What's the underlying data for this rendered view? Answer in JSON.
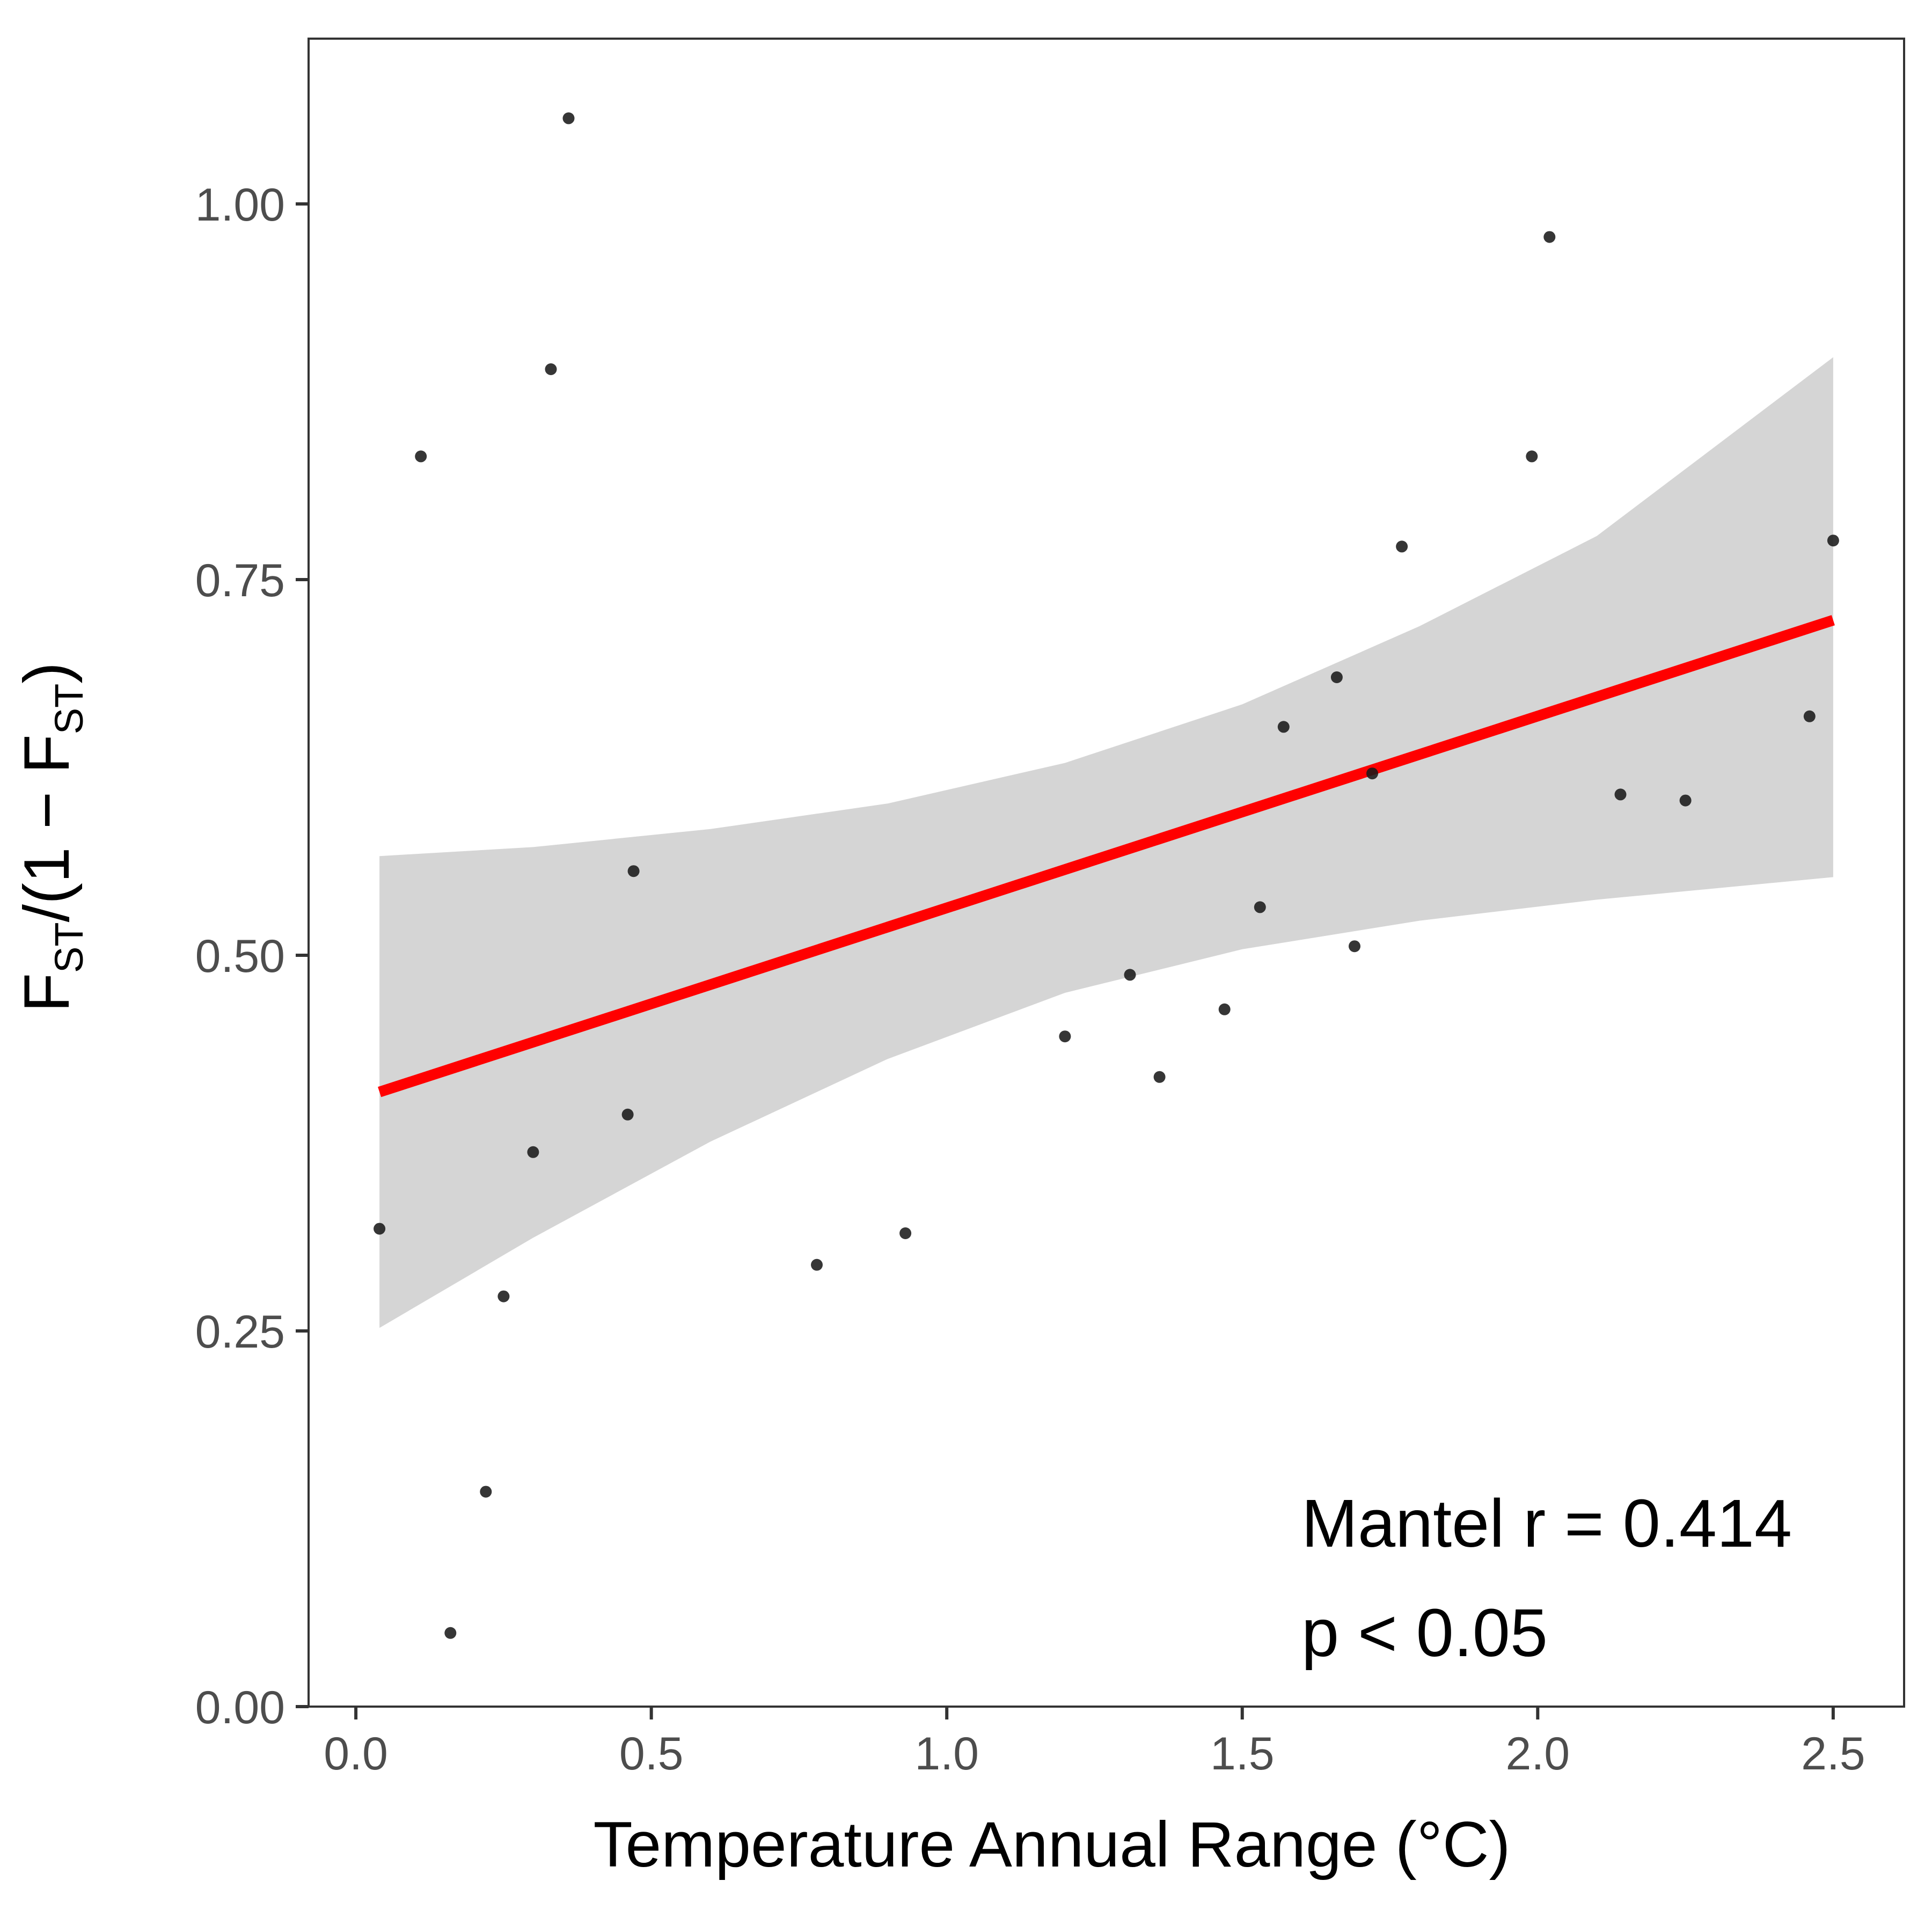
{
  "chart_data": {
    "type": "scatter",
    "xlabel": "Temperature Annual Range (°C)",
    "ylabel": {
      "prefix": "F",
      "sub1": "ST",
      "middle": "/(1 − F",
      "sub2": "ST",
      "suffix": ")"
    },
    "xlim": [
      -0.08,
      2.62
    ],
    "ylim": [
      0.0,
      1.11
    ],
    "x_ticks": [
      "0.0",
      "0.5",
      "1.0",
      "1.5",
      "2.0",
      "2.5"
    ],
    "x_tick_values": [
      0.0,
      0.5,
      1.0,
      1.5,
      2.0,
      2.5
    ],
    "y_ticks": [
      "0.00",
      "0.25",
      "0.50",
      "0.75",
      "1.00"
    ],
    "y_tick_values": [
      0.0,
      0.25,
      0.5,
      0.75,
      1.0
    ],
    "grid": false,
    "points": [
      {
        "x": 0.04,
        "y": 0.318
      },
      {
        "x": 0.11,
        "y": 0.832
      },
      {
        "x": 0.16,
        "y": 0.049
      },
      {
        "x": 0.22,
        "y": 0.143
      },
      {
        "x": 0.25,
        "y": 0.273
      },
      {
        "x": 0.3,
        "y": 0.369
      },
      {
        "x": 0.33,
        "y": 0.89
      },
      {
        "x": 0.36,
        "y": 1.057
      },
      {
        "x": 0.46,
        "y": 0.394
      },
      {
        "x": 0.47,
        "y": 0.556
      },
      {
        "x": 0.78,
        "y": 0.294
      },
      {
        "x": 0.93,
        "y": 0.315
      },
      {
        "x": 1.2,
        "y": 0.446
      },
      {
        "x": 1.31,
        "y": 0.487
      },
      {
        "x": 1.36,
        "y": 0.419
      },
      {
        "x": 1.47,
        "y": 0.464
      },
      {
        "x": 1.53,
        "y": 0.532
      },
      {
        "x": 1.57,
        "y": 0.652
      },
      {
        "x": 1.66,
        "y": 0.685
      },
      {
        "x": 1.69,
        "y": 0.506
      },
      {
        "x": 1.72,
        "y": 0.621
      },
      {
        "x": 1.77,
        "y": 0.772
      },
      {
        "x": 1.99,
        "y": 0.832
      },
      {
        "x": 2.02,
        "y": 0.978
      },
      {
        "x": 2.14,
        "y": 0.607
      },
      {
        "x": 2.25,
        "y": 0.603
      },
      {
        "x": 2.46,
        "y": 0.659
      },
      {
        "x": 2.5,
        "y": 0.776
      }
    ],
    "regression": {
      "x": [
        0.04,
        2.5
      ],
      "y": [
        0.409,
        0.723
      ],
      "color": "#ff0000"
    },
    "confidence_band": {
      "x": [
        0.04,
        0.3,
        0.6,
        0.9,
        1.2,
        1.5,
        1.8,
        2.1,
        2.5
      ],
      "upper": [
        0.566,
        0.572,
        0.584,
        0.601,
        0.628,
        0.667,
        0.719,
        0.779,
        0.898
      ],
      "lower": [
        0.252,
        0.312,
        0.376,
        0.431,
        0.475,
        0.504,
        0.523,
        0.537,
        0.552
      ],
      "color": "#d5d5d5"
    },
    "point_color": "#1a1a1a",
    "annotations": [
      "Mantel r = 0.414",
      "p < 0.05"
    ]
  }
}
